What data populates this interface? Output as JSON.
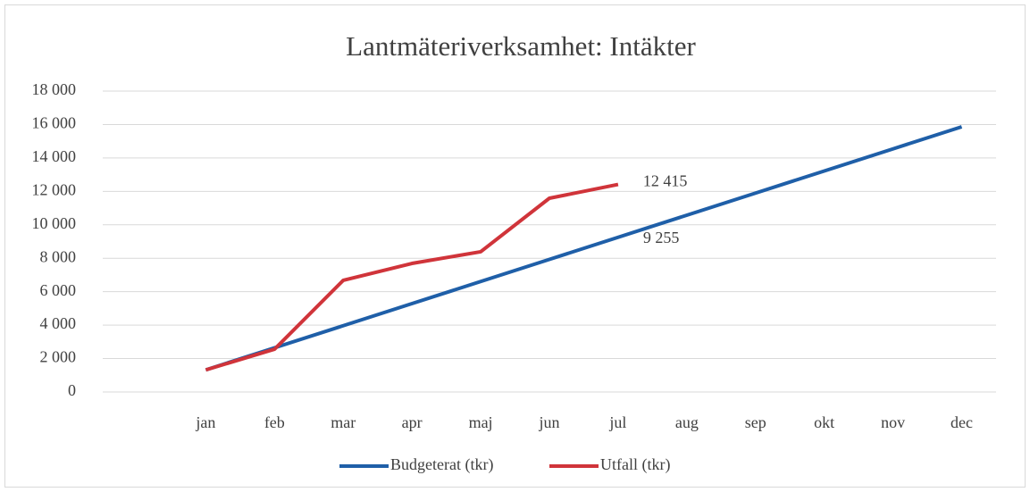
{
  "chart_data": {
    "type": "line",
    "title": "Lantmäteriverksamhet: Intäkter",
    "categories": [
      null,
      "jan",
      "feb",
      "mar",
      "apr",
      "maj",
      "jun",
      "jul",
      "aug",
      "sep",
      "okt",
      "nov",
      "dec"
    ],
    "series": [
      {
        "name": "Budgeterat (tkr)",
        "color": "#1f5fa8",
        "values": [
          null,
          1322,
          2644,
          3966,
          5288,
          6610,
          7932,
          9255,
          10577,
          11899,
          13221,
          14543,
          15865
        ],
        "value_labels": [
          null,
          null,
          null,
          null,
          null,
          null,
          null,
          "9 255",
          null,
          null,
          null,
          null,
          null
        ]
      },
      {
        "name": "Utfall (tkr)",
        "color": "#d0343a",
        "values": [
          null,
          1322,
          2560,
          6680,
          7690,
          8390,
          11590,
          12415,
          null,
          null,
          null,
          null,
          null
        ],
        "value_labels": [
          null,
          null,
          null,
          null,
          null,
          null,
          null,
          "12 415",
          null,
          null,
          null,
          null,
          null
        ]
      }
    ],
    "ylim": [
      0,
      18000
    ],
    "yticks": [
      0,
      {
        "value": 2000,
        "label": "2 000"
      },
      {
        "value": 4000,
        "label": "4 000"
      },
      {
        "value": 6000,
        "label": "6 000"
      },
      {
        "value": 8000,
        "label": "8 000"
      },
      {
        "value": 10000,
        "label": "10 000"
      },
      {
        "value": 12000,
        "label": "12 000"
      },
      {
        "value": 14000,
        "label": "14 000"
      },
      {
        "value": 16000,
        "label": "16 000"
      },
      {
        "value": 18000,
        "label": "18 000"
      }
    ],
    "grid": true,
    "legend": "bottom"
  }
}
